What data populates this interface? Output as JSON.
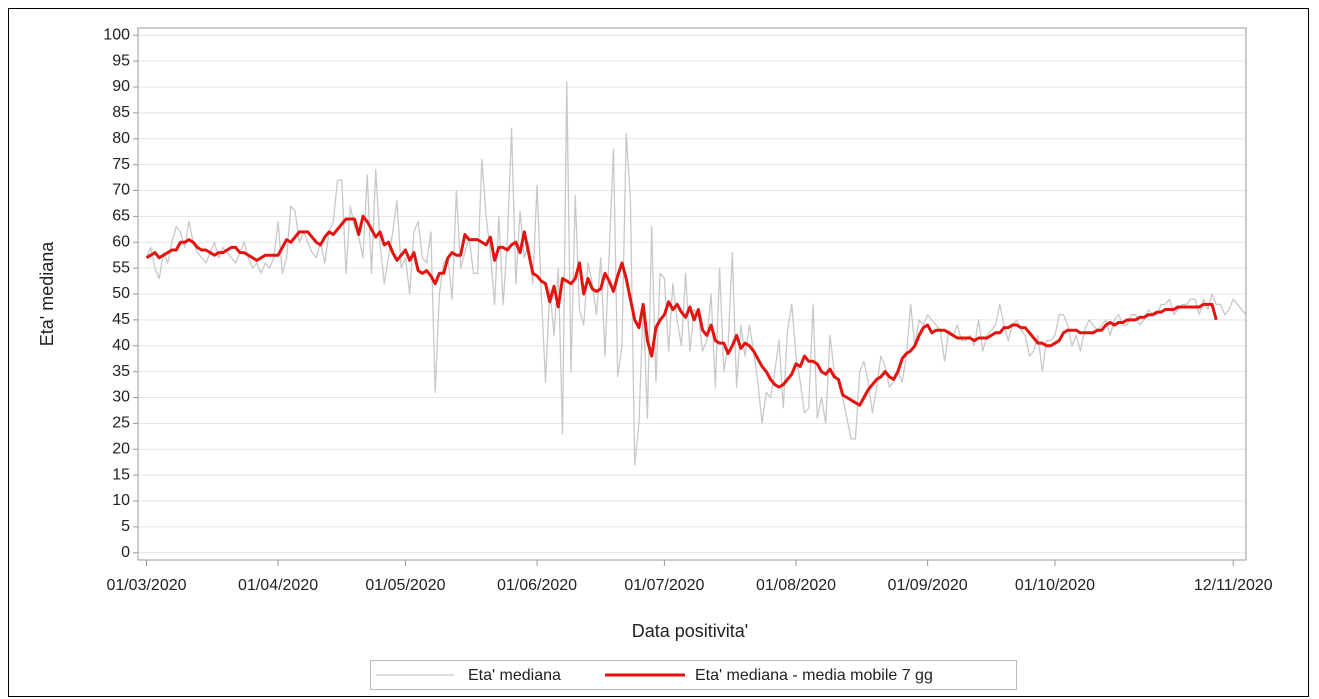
{
  "chart_data": {
    "type": "line",
    "xlabel": "Data positivita'",
    "ylabel": "Eta' mediana",
    "x": [
      "01/03/2020",
      "02/03/2020",
      "03/03/2020",
      "04/03/2020",
      "05/03/2020",
      "06/03/2020",
      "07/03/2020",
      "08/03/2020",
      "09/03/2020",
      "10/03/2020",
      "11/03/2020",
      "12/03/2020",
      "13/03/2020",
      "14/03/2020",
      "15/03/2020",
      "16/03/2020",
      "17/03/2020",
      "18/03/2020",
      "19/03/2020",
      "20/03/2020",
      "21/03/2020",
      "22/03/2020",
      "23/03/2020",
      "24/03/2020",
      "25/03/2020",
      "26/03/2020",
      "27/03/2020",
      "28/03/2020",
      "29/03/2020",
      "30/03/2020",
      "31/03/2020",
      "01/04/2020",
      "02/04/2020",
      "03/04/2020",
      "04/04/2020",
      "05/04/2020",
      "06/04/2020",
      "07/04/2020",
      "08/04/2020",
      "09/04/2020",
      "10/04/2020",
      "11/04/2020",
      "12/04/2020",
      "13/04/2020",
      "14/04/2020",
      "15/04/2020",
      "16/04/2020",
      "17/04/2020",
      "18/04/2020",
      "19/04/2020",
      "20/04/2020",
      "21/04/2020",
      "22/04/2020",
      "23/04/2020",
      "24/04/2020",
      "25/04/2020",
      "26/04/2020",
      "27/04/2020",
      "28/04/2020",
      "29/04/2020",
      "30/04/2020",
      "01/05/2020",
      "02/05/2020",
      "03/05/2020",
      "04/05/2020",
      "05/05/2020",
      "06/05/2020",
      "07/05/2020",
      "08/05/2020",
      "09/05/2020",
      "10/05/2020",
      "11/05/2020",
      "12/05/2020",
      "13/05/2020",
      "14/05/2020",
      "15/05/2020",
      "16/05/2020",
      "17/05/2020",
      "18/05/2020",
      "19/05/2020",
      "20/05/2020",
      "21/05/2020",
      "22/05/2020",
      "23/05/2020",
      "24/05/2020",
      "25/05/2020",
      "26/05/2020",
      "27/05/2020",
      "28/05/2020",
      "29/05/2020",
      "30/05/2020",
      "31/05/2020",
      "01/06/2020",
      "02/06/2020",
      "03/06/2020",
      "04/06/2020",
      "05/06/2020",
      "06/06/2020",
      "07/06/2020",
      "08/06/2020",
      "09/06/2020",
      "10/06/2020",
      "11/06/2020",
      "12/06/2020",
      "13/06/2020",
      "14/06/2020",
      "15/06/2020",
      "16/06/2020",
      "17/06/2020",
      "18/06/2020",
      "19/06/2020",
      "20/06/2020",
      "21/06/2020",
      "22/06/2020",
      "23/06/2020",
      "24/06/2020",
      "25/06/2020",
      "26/06/2020",
      "27/06/2020",
      "28/06/2020",
      "29/06/2020",
      "30/06/2020",
      "01/07/2020",
      "02/07/2020",
      "03/07/2020",
      "04/07/2020",
      "05/07/2020",
      "06/07/2020",
      "07/07/2020",
      "08/07/2020",
      "09/07/2020",
      "10/07/2020",
      "11/07/2020",
      "12/07/2020",
      "13/07/2020",
      "14/07/2020",
      "15/07/2020",
      "16/07/2020",
      "17/07/2020",
      "18/07/2020",
      "19/07/2020",
      "20/07/2020",
      "21/07/2020",
      "22/07/2020",
      "23/07/2020",
      "24/07/2020",
      "25/07/2020",
      "26/07/2020",
      "27/07/2020",
      "28/07/2020",
      "29/07/2020",
      "30/07/2020",
      "31/07/2020",
      "01/08/2020",
      "02/08/2020",
      "03/08/2020",
      "04/08/2020",
      "05/08/2020",
      "06/08/2020",
      "07/08/2020",
      "08/08/2020",
      "09/08/2020",
      "10/08/2020",
      "11/08/2020",
      "12/08/2020",
      "13/08/2020",
      "14/08/2020",
      "15/08/2020",
      "16/08/2020",
      "17/08/2020",
      "18/08/2020",
      "19/08/2020",
      "20/08/2020",
      "21/08/2020",
      "22/08/2020",
      "23/08/2020",
      "24/08/2020",
      "25/08/2020",
      "26/08/2020",
      "27/08/2020",
      "28/08/2020",
      "29/08/2020",
      "30/08/2020",
      "31/08/2020",
      "01/09/2020",
      "02/09/2020",
      "03/09/2020",
      "04/09/2020",
      "05/09/2020",
      "06/09/2020",
      "07/09/2020",
      "08/09/2020",
      "09/09/2020",
      "10/09/2020",
      "11/09/2020",
      "12/09/2020",
      "13/09/2020",
      "14/09/2020",
      "15/09/2020",
      "16/09/2020",
      "17/09/2020",
      "18/09/2020",
      "19/09/2020",
      "20/09/2020",
      "21/09/2020",
      "22/09/2020",
      "23/09/2020",
      "24/09/2020",
      "25/09/2020",
      "26/09/2020",
      "27/09/2020",
      "28/09/2020",
      "29/09/2020",
      "30/09/2020",
      "01/10/2020",
      "02/10/2020",
      "03/10/2020",
      "04/10/2020",
      "05/10/2020",
      "06/10/2020",
      "07/10/2020",
      "08/10/2020",
      "09/10/2020",
      "10/10/2020",
      "11/10/2020",
      "12/10/2020",
      "13/10/2020",
      "14/10/2020",
      "15/10/2020",
      "16/10/2020",
      "17/10/2020",
      "18/10/2020",
      "19/10/2020",
      "20/10/2020",
      "21/10/2020",
      "22/10/2020",
      "23/10/2020",
      "24/10/2020",
      "25/10/2020",
      "26/10/2020",
      "27/10/2020",
      "28/10/2020",
      "29/10/2020",
      "30/10/2020",
      "31/10/2020",
      "01/11/2020",
      "02/11/2020",
      "03/11/2020",
      "04/11/2020",
      "05/11/2020",
      "06/11/2020",
      "07/11/2020",
      "08/11/2020",
      "09/11/2020",
      "10/11/2020",
      "11/11/2020",
      "12/11/2020",
      "13/11/2020",
      "14/11/2020",
      "15/11/2020"
    ],
    "series": [
      {
        "name": "Eta' mediana",
        "color": "#c8c8c8",
        "width": 1.3,
        "values": [
          57,
          59,
          55,
          53,
          58,
          56,
          60,
          63,
          62,
          59,
          64,
          60,
          58,
          57,
          56,
          58,
          60,
          57,
          59,
          58,
          57,
          56,
          58,
          60,
          57,
          55,
          56,
          54,
          56,
          55,
          57,
          64,
          54,
          57,
          67,
          66,
          60,
          62,
          60,
          58,
          57,
          60,
          56,
          62,
          64,
          72,
          72,
          54,
          67,
          63,
          61,
          57,
          73,
          54,
          74,
          60,
          52,
          57,
          62,
          68,
          55,
          57,
          50,
          62,
          64,
          57,
          56,
          62,
          31,
          50,
          56,
          57,
          49,
          70,
          55,
          58,
          61,
          54,
          54,
          76,
          65,
          58,
          48,
          65,
          48,
          60,
          82,
          52,
          66,
          57,
          60,
          52,
          71,
          50,
          33,
          51,
          42,
          55,
          23,
          91,
          35,
          69,
          47,
          44,
          56,
          52,
          46,
          57,
          38,
          58,
          78,
          34,
          40,
          81,
          68,
          17,
          25,
          48,
          26,
          63,
          33,
          54,
          53,
          39,
          52,
          45,
          40,
          54,
          39,
          47,
          46,
          39,
          41,
          50,
          32,
          55,
          35,
          40,
          58,
          32,
          44,
          38,
          44,
          39,
          33,
          25,
          31,
          30,
          35,
          41,
          28,
          43,
          48,
          38,
          33,
          27,
          28,
          48,
          26,
          30,
          25,
          42,
          35,
          33,
          30,
          26,
          22,
          22,
          35,
          37,
          33,
          27,
          32,
          38,
          36,
          32,
          33,
          35,
          33,
          38,
          48,
          40,
          45,
          44,
          46,
          45,
          44,
          43,
          37,
          43,
          42,
          44,
          41,
          41,
          42,
          40,
          45,
          39,
          42,
          43,
          44,
          48,
          44,
          41,
          44,
          45,
          43,
          42,
          38,
          39,
          42,
          35,
          41,
          41,
          42,
          46,
          46,
          44,
          40,
          42,
          39,
          43,
          45,
          44,
          43,
          44,
          45,
          42,
          45,
          46,
          44,
          44,
          46,
          46,
          44,
          45,
          47,
          46,
          46,
          48,
          48,
          49,
          46,
          47,
          48,
          48,
          49,
          49,
          46,
          49,
          47,
          50,
          48,
          48,
          46,
          47,
          49,
          48,
          47,
          46
        ]
      },
      {
        "name": "Eta' mediana - media mobile 7 gg",
        "color": "#e5130f",
        "width": 3,
        "values": [
          57,
          57.5,
          58,
          57,
          57.5,
          58,
          58.5,
          58.5,
          60,
          60,
          60.5,
          60,
          59,
          58.5,
          58.5,
          58,
          57.5,
          58,
          58,
          58.5,
          59,
          59,
          58,
          58,
          57.5,
          57,
          56.5,
          57,
          57.5,
          57.5,
          57.5,
          57.5,
          59,
          60.5,
          60,
          61,
          62,
          62,
          62,
          61,
          60,
          59.5,
          61,
          62,
          61.5,
          62.5,
          63.5,
          64.5,
          64.5,
          64.5,
          61.5,
          65,
          64,
          62.5,
          61,
          62,
          59.5,
          60,
          58,
          56.5,
          57.5,
          58.5,
          56.5,
          58,
          54.5,
          54,
          54.5,
          53.5,
          52,
          54,
          54,
          57,
          58,
          57.5,
          57.5,
          61.5,
          60.5,
          60.5,
          60.5,
          60,
          59.5,
          61,
          56.5,
          59,
          59,
          58.5,
          59.5,
          60,
          58,
          62,
          58,
          54,
          53.5,
          52.5,
          52,
          48.5,
          51.5,
          47.5,
          53,
          52.5,
          52,
          53,
          56,
          50,
          53,
          51,
          50.5,
          51,
          54,
          52.5,
          50.5,
          53.5,
          56,
          53,
          49,
          45,
          43.5,
          48,
          41,
          38,
          43.5,
          45,
          46,
          48.5,
          47,
          48,
          46.5,
          45.5,
          47.5,
          45,
          47,
          43,
          42,
          44,
          41,
          40.5,
          40.5,
          38.5,
          40,
          42,
          39.5,
          40.5,
          40,
          39,
          37.5,
          36,
          35,
          33.5,
          32.5,
          32,
          32.5,
          33.5,
          34.5,
          36.5,
          36,
          38,
          37,
          37,
          36.5,
          35,
          34.5,
          35.5,
          34,
          33.5,
          30.5,
          30,
          29.5,
          29,
          28.5,
          30,
          31.5,
          32.5,
          33.5,
          34,
          35,
          34,
          33.5,
          35,
          37.5,
          38.5,
          39,
          40,
          42,
          43.5,
          44,
          42.5,
          43,
          43,
          43,
          42.5,
          42,
          41.5,
          41.5,
          41.5,
          41.5,
          41,
          41.5,
          41.5,
          41.5,
          42,
          42.5,
          42.5,
          43.5,
          43.5,
          44,
          44,
          43.5,
          43.5,
          42.5,
          41.5,
          40.5,
          40.5,
          40,
          40,
          40.5,
          41,
          42.5,
          43,
          43,
          43,
          42.5,
          42.5,
          42.5,
          42.5,
          43,
          43,
          44,
          44.5,
          44,
          44.5,
          44.5,
          45,
          45,
          45,
          45.5,
          45.5,
          46,
          46,
          46.5,
          46.5,
          47,
          47,
          47,
          47.5,
          47.5,
          47.5,
          47.5,
          47.5,
          47.5,
          48,
          48,
          48,
          45,
          null,
          null,
          null,
          null,
          null,
          null,
          null
        ]
      }
    ],
    "xlim": [
      "28/02/2020",
      "15/11/2020"
    ],
    "xticks": [
      "01/03/2020",
      "01/04/2020",
      "01/05/2020",
      "01/06/2020",
      "01/07/2020",
      "01/08/2020",
      "01/09/2020",
      "01/10/2020",
      "12/11/2020"
    ],
    "ylim": [
      -1.4,
      101.4
    ],
    "yticks": [
      0,
      5,
      10,
      15,
      20,
      25,
      30,
      35,
      40,
      45,
      50,
      55,
      60,
      65,
      70,
      75,
      80,
      85,
      90,
      95,
      100
    ],
    "grid": true
  }
}
